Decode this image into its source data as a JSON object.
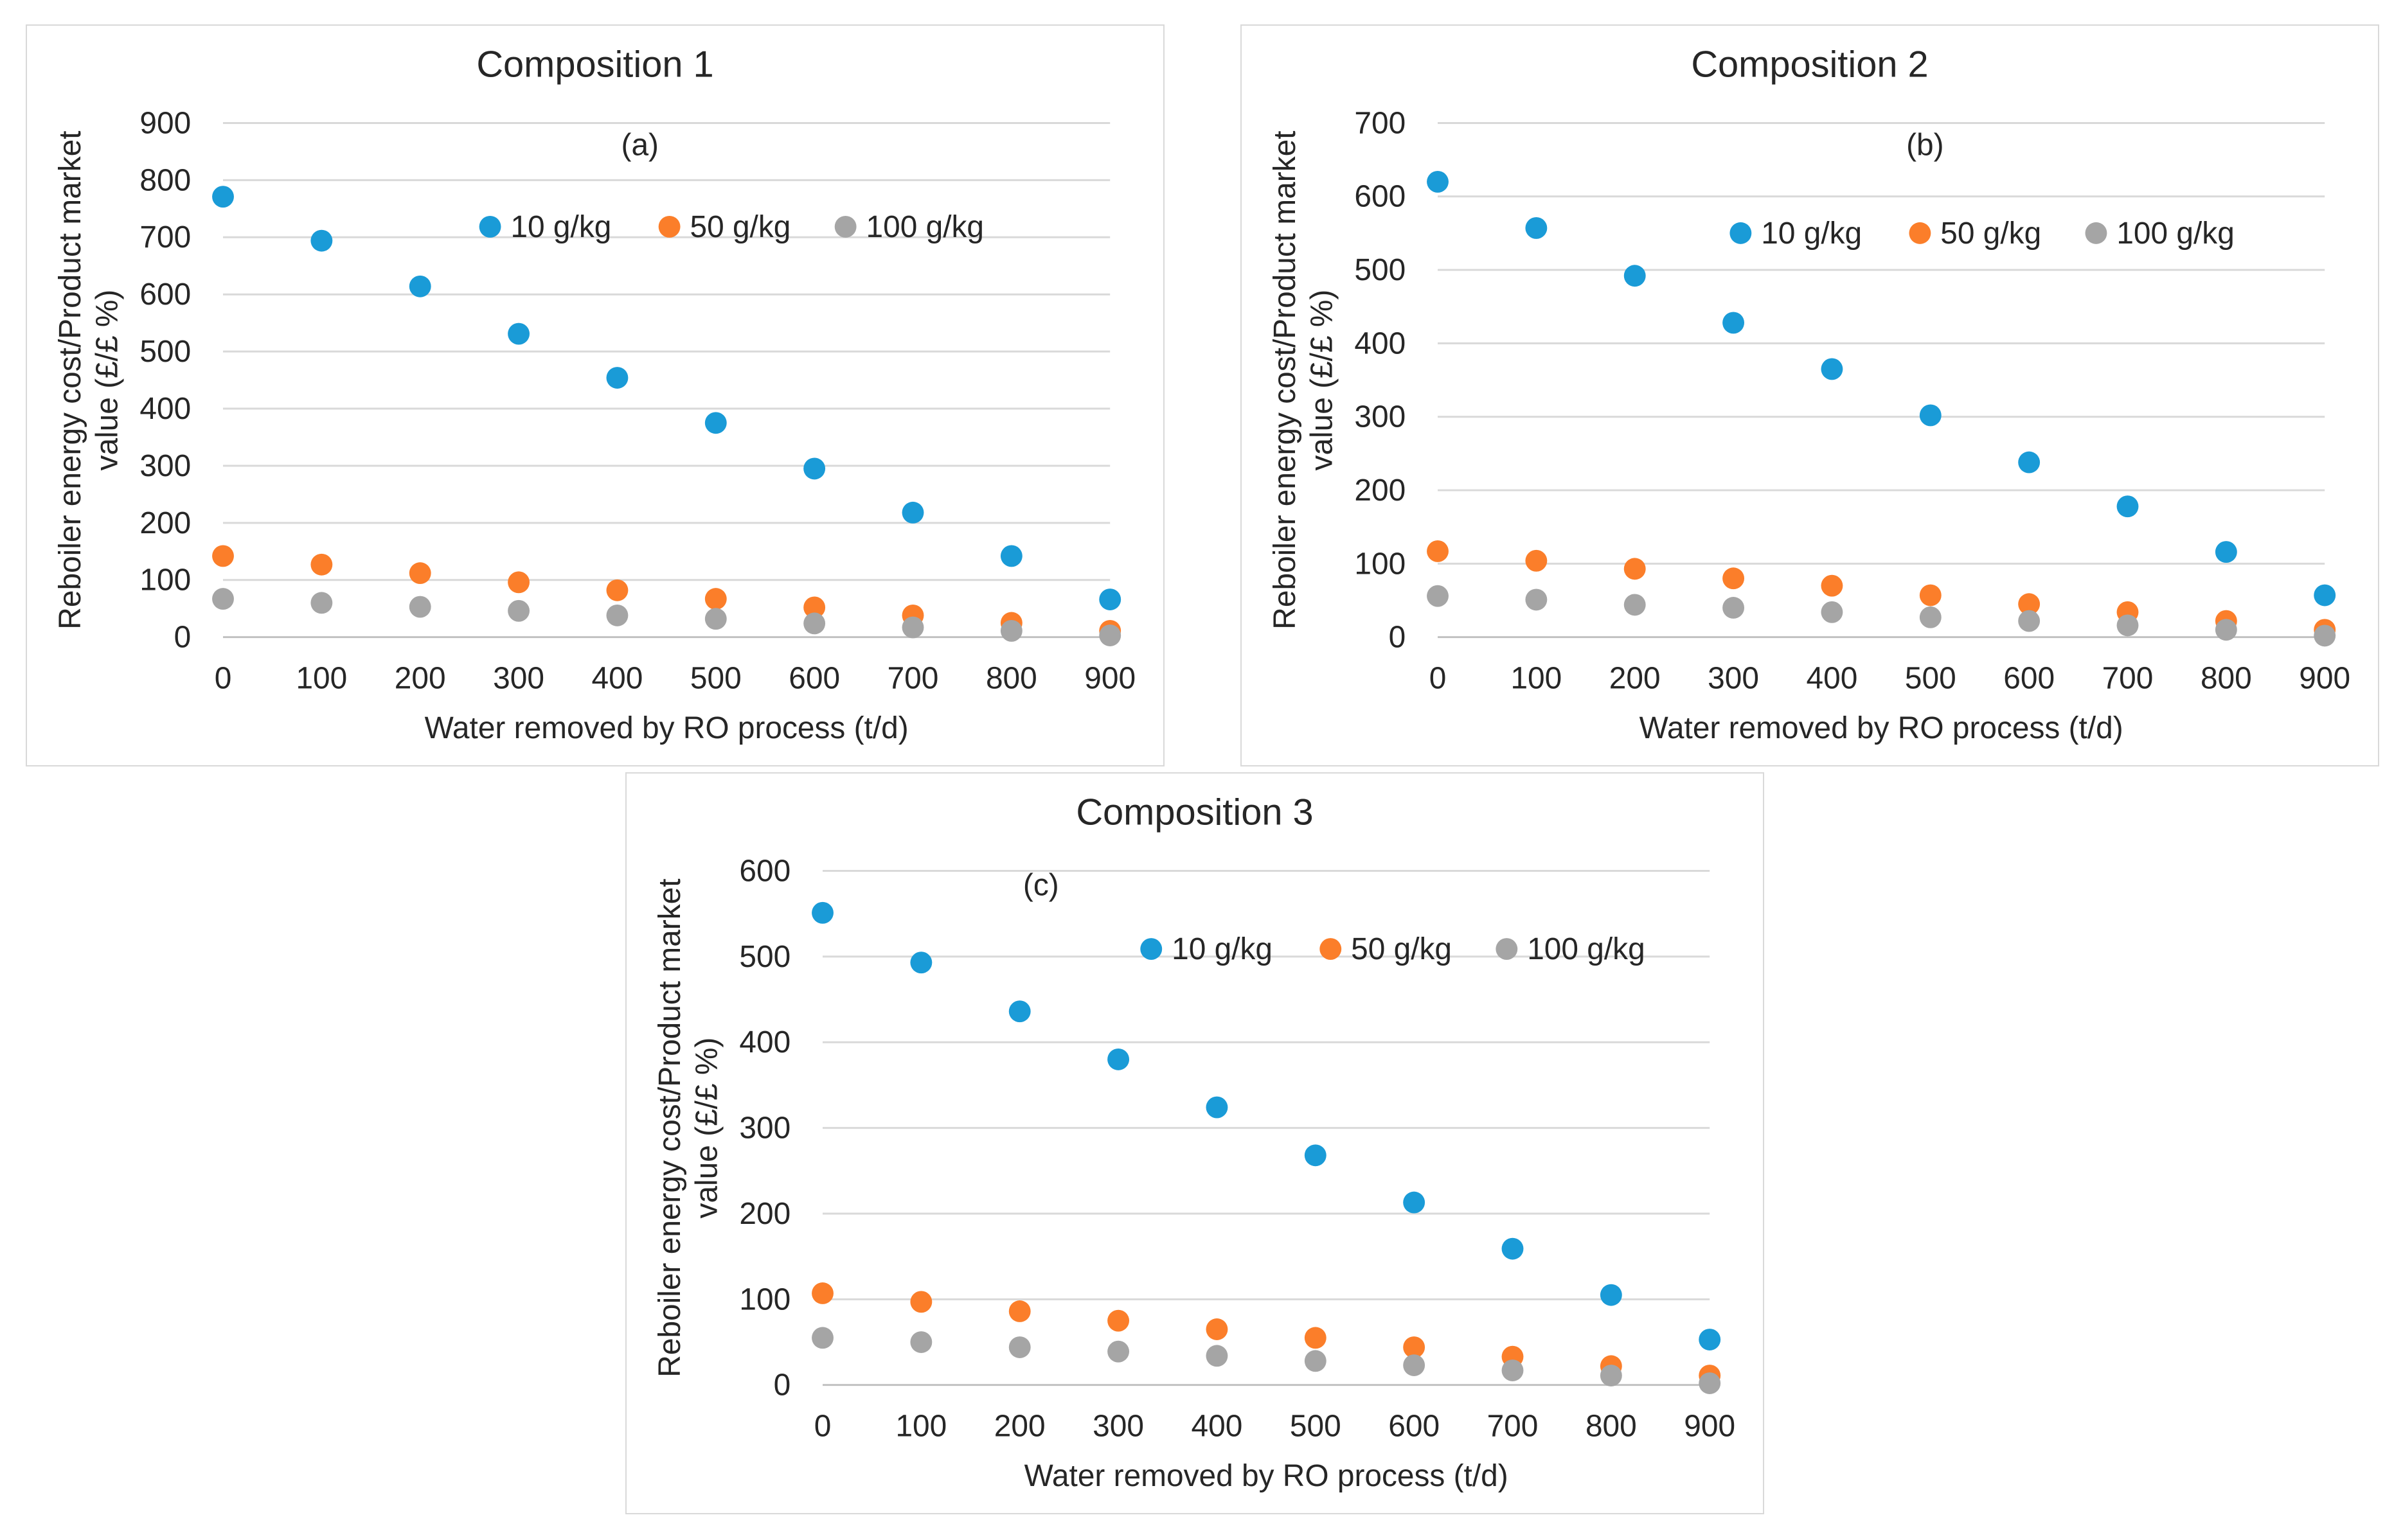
{
  "colors": {
    "s1": "#1a9bd7",
    "s2": "#fb7e2a",
    "s3": "#a5a5a5"
  },
  "chart_data": [
    {
      "type": "scatter",
      "title": "Composition 1",
      "annotation": "(a)",
      "xlabel": "Water removed by RO process (t/d)",
      "ylabel_line1": "Reboiler energy cost/Product market",
      "ylabel_line2": "value (£/£ %)",
      "x": [
        0,
        100,
        200,
        300,
        400,
        500,
        600,
        700,
        800,
        900
      ],
      "xlim": [
        0,
        900
      ],
      "xticks": [
        0,
        100,
        200,
        300,
        400,
        500,
        600,
        700,
        800,
        900
      ],
      "ylim": [
        0,
        900
      ],
      "yticks": [
        0,
        100,
        200,
        300,
        400,
        500,
        600,
        700,
        800,
        900
      ],
      "legend": "top-center",
      "series": [
        {
          "name": "10 g/kg",
          "values": [
            771,
            694,
            614,
            531,
            454,
            375,
            295,
            218,
            142,
            66
          ]
        },
        {
          "name": "50 g/kg",
          "values": [
            142,
            127,
            112,
            96,
            82,
            67,
            52,
            38,
            25,
            11
          ]
        },
        {
          "name": "100 g/kg",
          "values": [
            67,
            60,
            53,
            46,
            38,
            32,
            24,
            17,
            11,
            3
          ]
        }
      ]
    },
    {
      "type": "scatter",
      "title": "Composition 2",
      "annotation": "(b)",
      "xlabel": "Water removed by RO process (t/d)",
      "ylabel_line1": "Reboiler energy cost/Product market",
      "ylabel_line2": "value (£/£ %)",
      "x": [
        0,
        100,
        200,
        300,
        400,
        500,
        600,
        700,
        800,
        900
      ],
      "xlim": [
        0,
        900
      ],
      "xticks": [
        0,
        100,
        200,
        300,
        400,
        500,
        600,
        700,
        800,
        900
      ],
      "ylim": [
        0,
        700
      ],
      "yticks": [
        0,
        100,
        200,
        300,
        400,
        500,
        600,
        700
      ],
      "legend": "top-center",
      "series": [
        {
          "name": "10 g/kg",
          "values": [
            620,
            557,
            492,
            428,
            365,
            302,
            238,
            178,
            116,
            57
          ]
        },
        {
          "name": "50 g/kg",
          "values": [
            117,
            104,
            93,
            80,
            70,
            57,
            45,
            34,
            22,
            10
          ]
        },
        {
          "name": "100 g/kg",
          "values": [
            56,
            51,
            44,
            40,
            34,
            27,
            22,
            16,
            10,
            2
          ]
        }
      ]
    },
    {
      "type": "scatter",
      "title": "Composition 3",
      "annotation": "(c)",
      "xlabel": "Water removed by RO process (t/d)",
      "ylabel_line1": "Reboiler energy cost/Product market",
      "ylabel_line2": "value (£/£ %)",
      "x": [
        0,
        100,
        200,
        300,
        400,
        500,
        600,
        700,
        800,
        900
      ],
      "xlim": [
        0,
        900
      ],
      "xticks": [
        0,
        100,
        200,
        300,
        400,
        500,
        600,
        700,
        800,
        900
      ],
      "ylim": [
        0,
        600
      ],
      "yticks": [
        0,
        100,
        200,
        300,
        400,
        500,
        600
      ],
      "legend": "top-center",
      "series": [
        {
          "name": "10 g/kg",
          "values": [
            551,
            493,
            436,
            380,
            324,
            268,
            213,
            159,
            105,
            53
          ]
        },
        {
          "name": "50 g/kg",
          "values": [
            107,
            97,
            86,
            75,
            65,
            55,
            44,
            33,
            22,
            11
          ]
        },
        {
          "name": "100 g/kg",
          "values": [
            55,
            50,
            44,
            39,
            34,
            28,
            23,
            17,
            11,
            2
          ]
        }
      ]
    }
  ]
}
